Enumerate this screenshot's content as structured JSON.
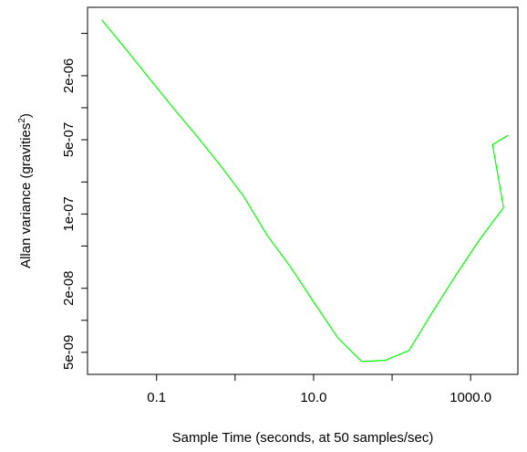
{
  "chart_data": {
    "type": "line",
    "title": "",
    "xlabel": "Sample Time (seconds, at 50 samples/sec)",
    "ylabel": {
      "prefix": "Allan variance (gravities",
      "superscript": "2",
      "suffix": ")"
    },
    "x_scale": "log",
    "y_scale": "log",
    "xlim": [
      0.0132,
      4000
    ],
    "ylim": [
      3.1e-09,
      8.8e-06
    ],
    "x_ticks": [
      {
        "value": 0.1,
        "label": "0.1"
      },
      {
        "value": 10,
        "label": "10.0"
      },
      {
        "value": 1000,
        "label": "1000.0"
      }
    ],
    "x_minor_ticks": [
      1,
      100
    ],
    "y_ticks": [
      {
        "value": 2e-06,
        "label": "2e-06"
      },
      {
        "value": 5e-07,
        "label": "5e-07"
      },
      {
        "value": 1e-07,
        "label": "1e-07"
      },
      {
        "value": 2e-08,
        "label": "2e-08"
      },
      {
        "value": 5e-09,
        "label": "5e-09"
      }
    ],
    "y_minor_ticks": [
      5e-06,
      1e-06,
      2e-07,
      5e-08,
      1e-08
    ],
    "grid": false,
    "legend": "none",
    "series": [
      {
        "color": "#00ff00",
        "x": [
          0.02,
          0.04,
          0.08,
          0.16,
          0.32,
          0.64,
          1.28,
          2.56,
          5.12,
          10.24,
          20.48,
          40.96,
          81.92,
          163.84,
          327.68,
          655.36,
          1310.72,
          2621.44
        ],
        "y": [
          6.7e-06,
          3.6e-06,
          1.9e-06,
          1.01e-06,
          5.5e-07,
          2.9e-07,
          1.47e-07,
          6.3e-08,
          3.15e-08,
          1.45e-08,
          6.8e-09,
          4.1e-09,
          4.2e-09,
          5.2e-09,
          1.2e-08,
          2.7e-08,
          5.8e-08,
          1.15e-07
        ]
      }
    ],
    "series_tail": {
      "x": [
        1900,
        3000
      ],
      "y": [
        4.5e-07,
        5.5e-07
      ]
    }
  }
}
